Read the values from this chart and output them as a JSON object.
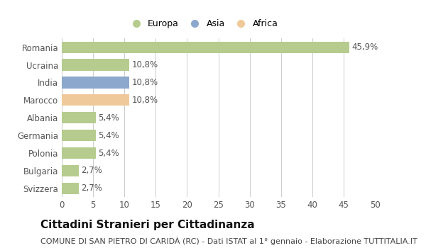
{
  "categories": [
    "Svizzera",
    "Bulgaria",
    "Polonia",
    "Germania",
    "Albania",
    "Marocco",
    "India",
    "Ucraina",
    "Romania"
  ],
  "values": [
    2.7,
    2.7,
    5.4,
    5.4,
    5.4,
    10.8,
    10.8,
    10.8,
    45.9
  ],
  "labels": [
    "2,7%",
    "2,7%",
    "5,4%",
    "5,4%",
    "5,4%",
    "10,8%",
    "10,8%",
    "10,8%",
    "45,9%"
  ],
  "colors": [
    "#b5cc8e",
    "#b5cc8e",
    "#b5cc8e",
    "#b5cc8e",
    "#b5cc8e",
    "#f0c99a",
    "#8da8cd",
    "#b5cc8e",
    "#b5cc8e"
  ],
  "legend_labels": [
    "Europa",
    "Asia",
    "Africa"
  ],
  "legend_colors": [
    "#b5cc8e",
    "#8da8cd",
    "#f0c99a"
  ],
  "title": "Cittadini Stranieri per Cittadinanza",
  "subtitle": "COMUNE DI SAN PIETRO DI CARIDÀ (RC) - Dati ISTAT al 1° gennaio - Elaborazione TUTTITALIA.IT",
  "xlim": [
    0,
    50
  ],
  "xticks": [
    0,
    5,
    10,
    15,
    20,
    25,
    30,
    35,
    40,
    45,
    50
  ],
  "background_color": "#ffffff",
  "grid_color": "#cccccc",
  "bar_height": 0.65,
  "title_fontsize": 11,
  "subtitle_fontsize": 8,
  "label_fontsize": 8.5,
  "tick_fontsize": 8.5,
  "legend_fontsize": 9
}
